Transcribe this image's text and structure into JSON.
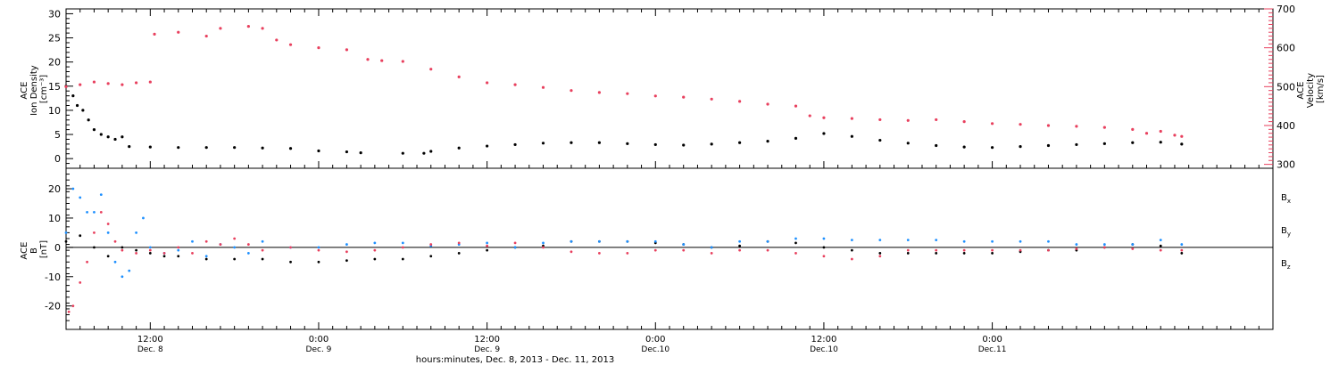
{
  "chart_data": [
    {
      "type": "scatter",
      "panel": "top",
      "ylabel_left": [
        "ACE",
        "Ion Density",
        "[cm⁻³]"
      ],
      "ylabel_right": [
        "ACE",
        "Velocity",
        "[km/s]"
      ],
      "ylim_left": [
        -2,
        31
      ],
      "yticks_left": [
        0,
        5,
        10,
        15,
        20,
        25,
        30
      ],
      "ylim_right": [
        290,
        700
      ],
      "yticks_right": [
        300,
        400,
        500,
        600,
        700
      ],
      "grid": false,
      "colors": {
        "density": "#000000",
        "velocity": "#e8405e"
      },
      "series": [
        {
          "axis": "left",
          "points": [
            [
              0.0,
              15
            ],
            [
              0.5,
              13
            ],
            [
              0.8,
              11
            ],
            [
              1.2,
              10
            ],
            [
              1.6,
              8
            ],
            [
              2.0,
              6
            ],
            [
              2.5,
              5
            ],
            [
              3.0,
              4.5
            ],
            [
              3.5,
              4
            ],
            [
              4.0,
              4.5
            ],
            [
              4.5,
              2.5
            ],
            [
              6,
              2.4
            ],
            [
              8,
              2.3
            ],
            [
              10,
              2.3
            ],
            [
              12,
              2.3
            ],
            [
              14,
              2.2
            ],
            [
              16,
              2.1
            ],
            [
              18,
              1.6
            ],
            [
              20,
              1.4
            ],
            [
              21,
              1.2
            ],
            [
              24,
              1.1
            ],
            [
              25.5,
              1.1
            ],
            [
              26,
              1.5
            ],
            [
              28,
              2.2
            ],
            [
              30,
              2.6
            ],
            [
              32,
              2.9
            ],
            [
              34,
              3.2
            ],
            [
              36,
              3.3
            ],
            [
              38,
              3.3
            ],
            [
              40,
              3.1
            ],
            [
              42,
              2.9
            ],
            [
              44,
              2.8
            ],
            [
              46,
              3.0
            ],
            [
              48,
              3.3
            ],
            [
              50,
              3.6
            ],
            [
              52,
              4.2
            ],
            [
              54,
              5.2
            ],
            [
              56,
              4.6
            ],
            [
              58,
              3.8
            ],
            [
              60,
              3.2
            ],
            [
              62,
              2.7
            ],
            [
              64,
              2.4
            ],
            [
              66,
              2.3
            ],
            [
              68,
              2.5
            ],
            [
              70,
              2.7
            ],
            [
              72,
              2.9
            ],
            [
              74,
              3.1
            ],
            [
              76,
              3.3
            ],
            [
              78,
              3.4
            ],
            [
              79.5,
              3.0
            ]
          ]
        },
        {
          "axis": "right",
          "points": [
            [
              0,
              500
            ],
            [
              1,
              505
            ],
            [
              2,
              512
            ],
            [
              3,
              508
            ],
            [
              4,
              505
            ],
            [
              5,
              510
            ],
            [
              6,
              512
            ],
            [
              6.3,
              635
            ],
            [
              8,
              640
            ],
            [
              10,
              630
            ],
            [
              11,
              650
            ],
            [
              13,
              655
            ],
            [
              14,
              650
            ],
            [
              15,
              620
            ],
            [
              16,
              608
            ],
            [
              18,
              600
            ],
            [
              20,
              595
            ],
            [
              21.5,
              570
            ],
            [
              22.5,
              567
            ],
            [
              24,
              565
            ],
            [
              26,
              545
            ],
            [
              28,
              525
            ],
            [
              30,
              510
            ],
            [
              32,
              505
            ],
            [
              34,
              498
            ],
            [
              36,
              490
            ],
            [
              38,
              485
            ],
            [
              40,
              482
            ],
            [
              42,
              476
            ],
            [
              44,
              473
            ],
            [
              46,
              468
            ],
            [
              48,
              462
            ],
            [
              50,
              455
            ],
            [
              52,
              450
            ],
            [
              53,
              425
            ],
            [
              54,
              420
            ],
            [
              56,
              418
            ],
            [
              58,
              415
            ],
            [
              60,
              413
            ],
            [
              62,
              415
            ],
            [
              64,
              410
            ],
            [
              66,
              405
            ],
            [
              68,
              403
            ],
            [
              70,
              400
            ],
            [
              72,
              398
            ],
            [
              74,
              395
            ],
            [
              76,
              390
            ],
            [
              77,
              380
            ],
            [
              78,
              385
            ],
            [
              79,
              375
            ],
            [
              79.5,
              372
            ]
          ]
        }
      ]
    },
    {
      "type": "scatter",
      "panel": "bottom",
      "ylabel_left": [
        "ACE",
        "B",
        "[nT]"
      ],
      "ylim": [
        -28,
        27
      ],
      "yticks": [
        -20,
        -10,
        0,
        10,
        20
      ],
      "zero_line": true,
      "grid": false,
      "legend_placement": "right",
      "series": [
        {
          "name": "Bx",
          "color": "#000000",
          "points": [
            [
              0,
              2
            ],
            [
              1,
              4
            ],
            [
              2,
              0
            ],
            [
              3,
              -3
            ],
            [
              4,
              0
            ],
            [
              5,
              -1
            ],
            [
              6,
              -2
            ],
            [
              7,
              -3
            ],
            [
              8,
              -3
            ],
            [
              10,
              -4
            ],
            [
              12,
              -4
            ],
            [
              14,
              -4
            ],
            [
              16,
              -5
            ],
            [
              18,
              -5
            ],
            [
              20,
              -4.5
            ],
            [
              22,
              -4
            ],
            [
              24,
              -4
            ],
            [
              26,
              -3
            ],
            [
              28,
              -2
            ],
            [
              30,
              -1
            ],
            [
              32,
              0
            ],
            [
              34,
              0.5
            ],
            [
              36,
              2
            ],
            [
              38,
              2
            ],
            [
              40,
              2
            ],
            [
              42,
              1.5
            ],
            [
              44,
              1
            ],
            [
              46,
              0
            ],
            [
              48,
              0.5
            ],
            [
              50,
              2
            ],
            [
              52,
              1.5
            ],
            [
              54,
              0
            ],
            [
              56,
              -1
            ],
            [
              58,
              -2
            ],
            [
              60,
              -2
            ],
            [
              62,
              -2
            ],
            [
              64,
              -2
            ],
            [
              66,
              -2
            ],
            [
              68,
              -1.5
            ],
            [
              70,
              -1
            ],
            [
              72,
              -1
            ],
            [
              74,
              0
            ],
            [
              76,
              1
            ],
            [
              78,
              0.5
            ],
            [
              79.5,
              -2
            ]
          ]
        },
        {
          "name": "By",
          "color": "#1e90ff",
          "points": [
            [
              0,
              5
            ],
            [
              0.5,
              20
            ],
            [
              1,
              17
            ],
            [
              1.5,
              12
            ],
            [
              2,
              12
            ],
            [
              2.5,
              18
            ],
            [
              3,
              5
            ],
            [
              3.5,
              -5
            ],
            [
              4,
              -10
            ],
            [
              4.5,
              -8
            ],
            [
              5,
              5
            ],
            [
              5.5,
              10
            ],
            [
              6,
              0
            ],
            [
              7,
              -2
            ],
            [
              8,
              -1
            ],
            [
              9,
              2
            ],
            [
              10,
              -3
            ],
            [
              11,
              1
            ],
            [
              12,
              0
            ],
            [
              13,
              -2
            ],
            [
              14,
              2
            ],
            [
              16,
              0
            ],
            [
              18,
              0
            ],
            [
              20,
              1
            ],
            [
              22,
              1.5
            ],
            [
              24,
              1.5
            ],
            [
              26,
              0.5
            ],
            [
              28,
              1
            ],
            [
              30,
              1.5
            ],
            [
              32,
              0
            ],
            [
              34,
              1.5
            ],
            [
              36,
              2
            ],
            [
              38,
              2
            ],
            [
              40,
              2
            ],
            [
              42,
              2
            ],
            [
              44,
              1
            ],
            [
              46,
              0
            ],
            [
              48,
              2
            ],
            [
              50,
              2
            ],
            [
              52,
              3
            ],
            [
              54,
              3
            ],
            [
              56,
              2.5
            ],
            [
              58,
              2.5
            ],
            [
              60,
              2.5
            ],
            [
              62,
              2.5
            ],
            [
              64,
              2
            ],
            [
              66,
              2
            ],
            [
              68,
              2
            ],
            [
              70,
              2
            ],
            [
              72,
              1
            ],
            [
              74,
              1
            ],
            [
              76,
              1
            ],
            [
              78,
              2.5
            ],
            [
              79.5,
              1
            ]
          ]
        },
        {
          "name": "Bz",
          "color": "#e8405e",
          "points": [
            [
              0.2,
              -22
            ],
            [
              0.5,
              -20
            ],
            [
              1,
              -12
            ],
            [
              1.5,
              -5
            ],
            [
              2,
              5
            ],
            [
              2.5,
              12
            ],
            [
              3,
              8
            ],
            [
              3.5,
              2
            ],
            [
              4,
              -1
            ],
            [
              5,
              -2
            ],
            [
              6,
              -1
            ],
            [
              7,
              -2
            ],
            [
              8,
              0
            ],
            [
              9,
              -2
            ],
            [
              10,
              2
            ],
            [
              11,
              1
            ],
            [
              12,
              3
            ],
            [
              13,
              1
            ],
            [
              14,
              -1
            ],
            [
              16,
              0
            ],
            [
              18,
              -1
            ],
            [
              20,
              -1.5
            ],
            [
              22,
              -1
            ],
            [
              24,
              0
            ],
            [
              26,
              1
            ],
            [
              28,
              1.5
            ],
            [
              30,
              0.5
            ],
            [
              32,
              1.5
            ],
            [
              34,
              0
            ],
            [
              36,
              -1.5
            ],
            [
              38,
              -2
            ],
            [
              40,
              -2
            ],
            [
              42,
              -1
            ],
            [
              44,
              -1
            ],
            [
              46,
              -2
            ],
            [
              48,
              -1
            ],
            [
              50,
              -1
            ],
            [
              52,
              -2
            ],
            [
              54,
              -3
            ],
            [
              56,
              -4
            ],
            [
              58,
              -3
            ],
            [
              60,
              -1
            ],
            [
              62,
              -1
            ],
            [
              64,
              -1
            ],
            [
              66,
              -1
            ],
            [
              68,
              -1
            ],
            [
              70,
              -1
            ],
            [
              72,
              -0.5
            ],
            [
              74,
              0
            ],
            [
              76,
              -0.5
            ],
            [
              78,
              -1
            ],
            [
              79.5,
              -1
            ]
          ]
        }
      ]
    }
  ],
  "x_axis": {
    "range_hours": [
      0,
      86
    ],
    "major_ticks": [
      {
        "hour": 6,
        "time": "12:00",
        "day": "Dec. 8"
      },
      {
        "hour": 18,
        "time": "0:00",
        "day": "Dec. 9"
      },
      {
        "hour": 30,
        "time": "12:00",
        "day": "Dec. 9"
      },
      {
        "hour": 42,
        "time": "0:00",
        "day": "Dec.10"
      },
      {
        "hour": 54,
        "time": "12:00",
        "day": "Dec.10"
      },
      {
        "hour": 66,
        "time": "0:00",
        "day": "Dec.11"
      }
    ],
    "xlabel": "hours:minutes, Dec. 8, 2013 - Dec. 11, 2013"
  },
  "legend": [
    "B",
    "x",
    "B",
    "y",
    "B",
    "z"
  ]
}
